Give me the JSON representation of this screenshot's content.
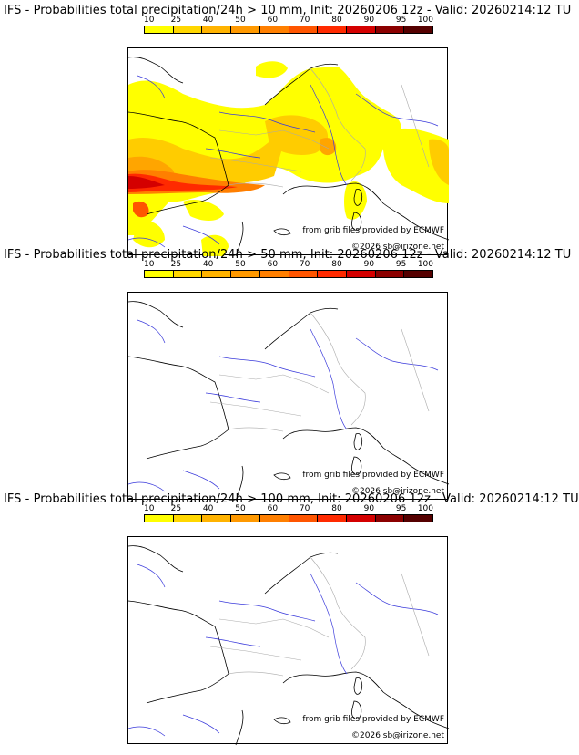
{
  "colorbar": {
    "labels": [
      "10",
      "25",
      "40",
      "50",
      "60",
      "70",
      "80",
      "90",
      "95",
      "100"
    ],
    "colors": [
      "#ffff00",
      "#ffd700",
      "#ffb300",
      "#ff9900",
      "#ff7f00",
      "#ff5500",
      "#ff2a00",
      "#d40000",
      "#8b0000",
      "#550000"
    ]
  },
  "panels": [
    {
      "title": "IFS - Probabilities total precipitation/24h > 10 mm, Init: 20260206 12z - Valid: 20260214:12 TU",
      "source": "from grib files provided by ECMWF",
      "copyright": "©2026 sb@irizone.net",
      "precip_shown": true
    },
    {
      "title": "IFS - Probabilities total precipitation/24h > 50 mm, Init: 20260206 12z - Valid: 20260214:12 TU",
      "source": "from grib files provided by ECMWF",
      "copyright": "©2026 sb@irizone.net",
      "precip_shown": false
    },
    {
      "title": "IFS - Probabilities total precipitation/24h > 100 mm, Init: 20260206 12z - Valid: 20260214:12 TU",
      "source": "from grib files provided by ECMWF",
      "copyright": "©2026 sb@irizone.net",
      "precip_shown": false
    }
  ]
}
